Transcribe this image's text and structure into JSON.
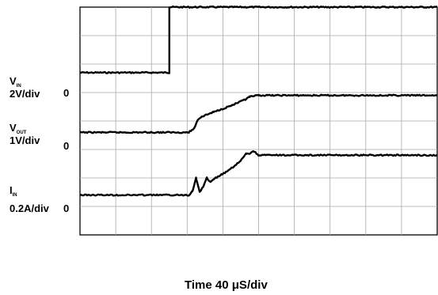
{
  "chart_data": {
    "type": "line",
    "title": "",
    "grid": true,
    "divisions": {
      "x": 10,
      "y": 8
    },
    "xlabel": "Time 40 μS/div",
    "x_unit": "μS",
    "x_scale_per_div": 40,
    "x_range": [
      0,
      400
    ],
    "series": [
      {
        "name": "VIN",
        "symbol": "V",
        "subscript": "IN",
        "scale": "2V/div",
        "zero_label": "0",
        "zero_div": 2.3,
        "points": [
          [
            0,
            0
          ],
          [
            100,
            0
          ],
          [
            100,
            2.3
          ],
          [
            400,
            2.3
          ]
        ]
      },
      {
        "name": "VOUT",
        "symbol": "V",
        "subscript": "OUT",
        "scale": "1V/div",
        "zero_label": "0",
        "zero_div": 4.4,
        "points": [
          [
            0,
            0
          ],
          [
            122,
            0
          ],
          [
            128,
            0.15
          ],
          [
            132,
            0.45
          ],
          [
            136,
            0.55
          ],
          [
            150,
            0.72
          ],
          [
            170,
            0.95
          ],
          [
            185,
            1.15
          ],
          [
            190,
            1.25
          ],
          [
            200,
            1.3
          ],
          [
            222,
            1.3
          ],
          [
            400,
            1.3
          ]
        ]
      },
      {
        "name": "IN",
        "symbol": "I",
        "subscript": "IN",
        "scale": "0.2A/div",
        "zero_label": "0",
        "zero_div": 6.6,
        "points": [
          [
            0,
            0
          ],
          [
            122,
            0
          ],
          [
            126,
            0.15
          ],
          [
            130,
            0.6
          ],
          [
            134,
            0.1
          ],
          [
            138,
            0.3
          ],
          [
            142,
            0.6
          ],
          [
            146,
            0.45
          ],
          [
            152,
            0.6
          ],
          [
            166,
            0.85
          ],
          [
            180,
            1.2
          ],
          [
            186,
            1.45
          ],
          [
            190,
            1.45
          ],
          [
            194,
            1.55
          ],
          [
            200,
            1.4
          ],
          [
            240,
            1.4
          ],
          [
            400,
            1.4
          ]
        ]
      }
    ]
  }
}
